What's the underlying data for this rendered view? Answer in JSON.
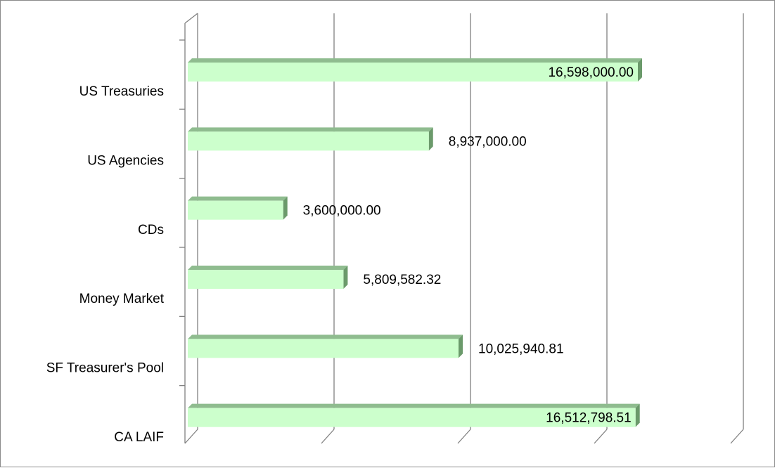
{
  "chart_data": {
    "type": "bar",
    "orientation": "horizontal",
    "style": "3d",
    "categories": [
      "US Treasuries",
      "US Agencies",
      "CDs",
      "Money Market",
      "SF Treasurer's Pool",
      "CA LAIF"
    ],
    "values": [
      16598000.0,
      8937000.0,
      3600000.0,
      5809582.32,
      10025940.81,
      16512798.51
    ],
    "data_labels": [
      "16,598,000.00",
      "8,937,000.00",
      "3,600,000.00",
      "5,809,582.32",
      "10,025,940.81",
      "16,512,798.51"
    ],
    "xlim": [
      0,
      20000000
    ],
    "grid": true,
    "legend": "none",
    "title": "",
    "xlabel": "",
    "ylabel": "",
    "colors": {
      "bar_front": "#ccffcc",
      "bar_top": "#8fbc8f",
      "bar_side": "#6b9a6b",
      "grid": "#808080"
    }
  }
}
